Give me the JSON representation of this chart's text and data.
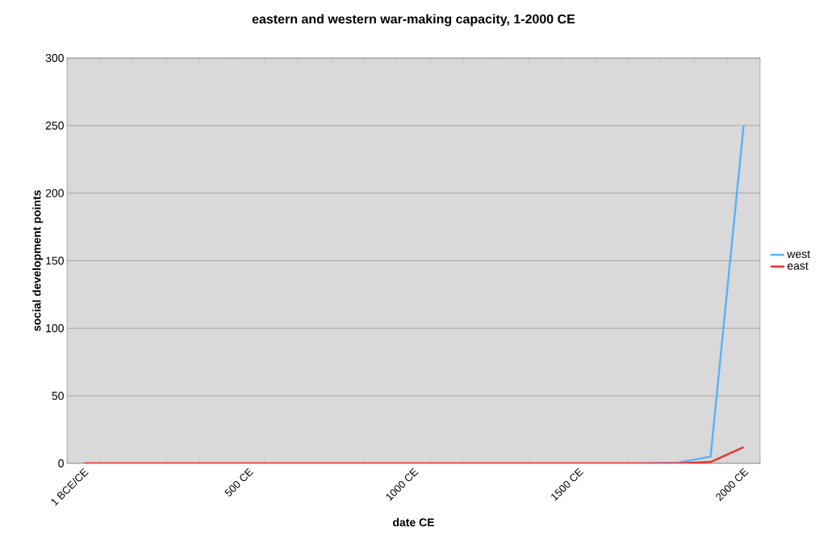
{
  "chart_data": {
    "type": "line",
    "title": "eastern and western war-making capacity, 1-2000 CE",
    "xlabel": "date CE",
    "ylabel": "social development points",
    "categories": [
      "1 BCE/CE",
      null,
      null,
      null,
      null,
      "500 CE",
      null,
      null,
      null,
      null,
      "1000 CE",
      null,
      null,
      null,
      null,
      "1500 CE",
      null,
      null,
      null,
      null,
      "2000 CE"
    ],
    "series": [
      {
        "name": "west",
        "color": "#5ab4f7",
        "values": [
          null,
          null,
          null,
          null,
          null,
          null,
          null,
          null,
          null,
          null,
          null,
          null,
          null,
          null,
          null,
          null,
          null,
          0,
          0.5,
          5,
          250
        ]
      },
      {
        "name": "east",
        "color": "#ee3333",
        "values": [
          0,
          0,
          0,
          0,
          0,
          0,
          0,
          0,
          0,
          0,
          0,
          0,
          0,
          0,
          0,
          0,
          0,
          0,
          0,
          1,
          12
        ]
      }
    ],
    "ylim": [
      0,
      300
    ],
    "yticks": [
      0,
      50,
      100,
      150,
      200,
      250,
      300
    ],
    "grid": "y",
    "legend": "right",
    "marker": "none",
    "line_style": "solid"
  }
}
